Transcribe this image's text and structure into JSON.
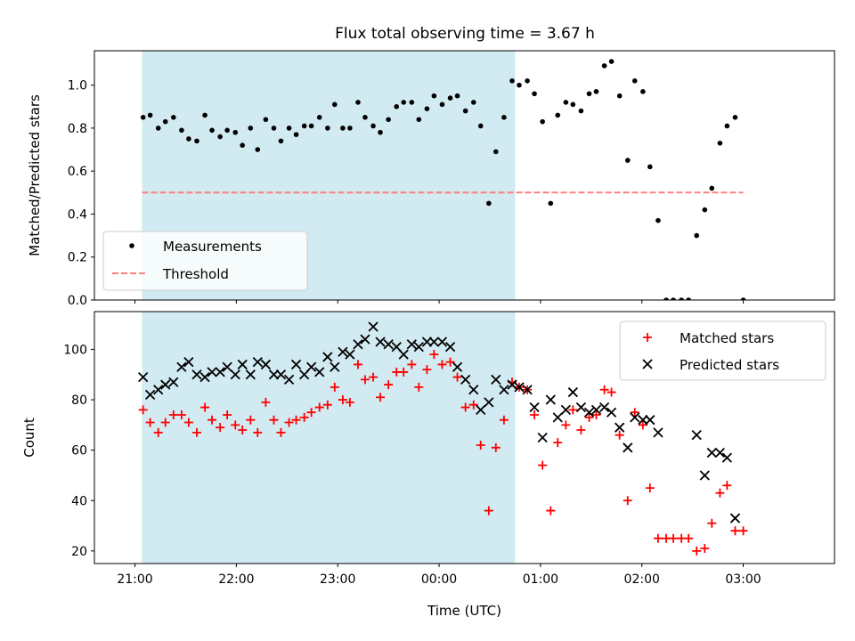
{
  "chart_data": [
    {
      "type": "scatter",
      "title": "Flux total observing time = 3.67 h",
      "xlabel": "",
      "ylabel": "Matched/Predicted stars",
      "ylim": [
        0,
        1.16
      ],
      "yticks": [
        0.0,
        0.2,
        0.4,
        0.6,
        0.8,
        1.0
      ],
      "ytick_labels": [
        "0.0",
        "0.2",
        "0.4",
        "0.6",
        "0.8",
        "1.0"
      ],
      "xlim_hours": [
        -3.4,
        3.9
      ],
      "shaded_span_hours": [
        -2.93,
        0.75
      ],
      "shade_color": "#add8e6",
      "legend_position": "lower-left",
      "series": [
        {
          "name": "Measurements",
          "marker": "dot",
          "color": "#000000",
          "points": [
            [
              -2.92,
              0.85
            ],
            [
              -2.85,
              0.86
            ],
            [
              -2.77,
              0.8
            ],
            [
              -2.7,
              0.83
            ],
            [
              -2.62,
              0.85
            ],
            [
              -2.54,
              0.79
            ],
            [
              -2.47,
              0.75
            ],
            [
              -2.39,
              0.74
            ],
            [
              -2.31,
              0.86
            ],
            [
              -2.24,
              0.79
            ],
            [
              -2.16,
              0.76
            ],
            [
              -2.09,
              0.79
            ],
            [
              -2.01,
              0.78
            ],
            [
              -1.94,
              0.72
            ],
            [
              -1.86,
              0.8
            ],
            [
              -1.79,
              0.7
            ],
            [
              -1.71,
              0.84
            ],
            [
              -1.63,
              0.8
            ],
            [
              -1.56,
              0.74
            ],
            [
              -1.48,
              0.8
            ],
            [
              -1.41,
              0.77
            ],
            [
              -1.33,
              0.81
            ],
            [
              -1.26,
              0.81
            ],
            [
              -1.18,
              0.85
            ],
            [
              -1.1,
              0.8
            ],
            [
              -1.03,
              0.91
            ],
            [
              -0.95,
              0.8
            ],
            [
              -0.88,
              0.8
            ],
            [
              -0.8,
              0.92
            ],
            [
              -0.73,
              0.85
            ],
            [
              -0.65,
              0.81
            ],
            [
              -0.58,
              0.78
            ],
            [
              -0.5,
              0.84
            ],
            [
              -0.42,
              0.9
            ],
            [
              -0.35,
              0.92
            ],
            [
              -0.27,
              0.92
            ],
            [
              -0.2,
              0.84
            ],
            [
              -0.12,
              0.89
            ],
            [
              -0.05,
              0.95
            ],
            [
              0.03,
              0.91
            ],
            [
              0.11,
              0.94
            ],
            [
              0.18,
              0.95
            ],
            [
              0.26,
              0.88
            ],
            [
              0.34,
              0.92
            ],
            [
              0.41,
              0.81
            ],
            [
              0.49,
              0.45
            ],
            [
              0.56,
              0.69
            ],
            [
              0.64,
              0.85
            ],
            [
              0.72,
              1.02
            ],
            [
              0.79,
              1.0
            ],
            [
              0.87,
              1.02
            ],
            [
              0.94,
              0.96
            ],
            [
              1.02,
              0.83
            ],
            [
              1.1,
              0.45
            ],
            [
              1.17,
              0.86
            ],
            [
              1.25,
              0.92
            ],
            [
              1.32,
              0.91
            ],
            [
              1.4,
              0.88
            ],
            [
              1.48,
              0.96
            ],
            [
              1.55,
              0.97
            ],
            [
              1.63,
              1.09
            ],
            [
              1.7,
              1.11
            ],
            [
              1.78,
              0.95
            ],
            [
              1.86,
              0.65
            ],
            [
              1.93,
              1.02
            ],
            [
              2.01,
              0.97
            ],
            [
              2.08,
              0.62
            ],
            [
              2.16,
              0.37
            ],
            [
              2.24,
              0.0
            ],
            [
              2.31,
              0.0
            ],
            [
              2.39,
              0.0
            ],
            [
              2.46,
              0.0
            ],
            [
              2.54,
              0.3
            ],
            [
              2.62,
              0.42
            ],
            [
              2.69,
              0.52
            ],
            [
              2.77,
              0.73
            ],
            [
              2.84,
              0.81
            ],
            [
              2.92,
              0.85
            ],
            [
              3.0,
              0.0
            ]
          ]
        },
        {
          "name": "Threshold",
          "marker": "dashed-line",
          "color": "#ff7f7f",
          "y": 0.5,
          "x_range_hours": [
            -2.93,
            3.0
          ]
        }
      ]
    },
    {
      "type": "scatter",
      "title": "",
      "xlabel": "Time (UTC)",
      "ylabel": "Count",
      "ylim": [
        15,
        115
      ],
      "yticks": [
        20,
        40,
        60,
        80,
        100
      ],
      "ytick_labels": [
        "20",
        "40",
        "60",
        "80",
        "100"
      ],
      "xlim_hours": [
        -3.4,
        3.9
      ],
      "xticks_hours": [
        -3,
        -2,
        -1,
        0,
        1,
        2,
        3
      ],
      "xtick_labels": [
        "21:00",
        "22:00",
        "23:00",
        "00:00",
        "01:00",
        "02:00",
        "03:00"
      ],
      "shaded_span_hours": [
        -2.93,
        0.75
      ],
      "shade_color": "#add8e6",
      "legend_position": "upper-right",
      "series": [
        {
          "name": "Matched stars",
          "marker": "plus",
          "color": "#ff0000",
          "points": [
            [
              -2.92,
              76
            ],
            [
              -2.85,
              71
            ],
            [
              -2.77,
              67
            ],
            [
              -2.7,
              71
            ],
            [
              -2.62,
              74
            ],
            [
              -2.54,
              74
            ],
            [
              -2.47,
              71
            ],
            [
              -2.39,
              67
            ],
            [
              -2.31,
              77
            ],
            [
              -2.24,
              72
            ],
            [
              -2.16,
              69
            ],
            [
              -2.09,
              74
            ],
            [
              -2.01,
              70
            ],
            [
              -1.94,
              68
            ],
            [
              -1.86,
              72
            ],
            [
              -1.79,
              67
            ],
            [
              -1.71,
              79
            ],
            [
              -1.63,
              72
            ],
            [
              -1.56,
              67
            ],
            [
              -1.48,
              71
            ],
            [
              -1.41,
              72
            ],
            [
              -1.33,
              73
            ],
            [
              -1.26,
              75
            ],
            [
              -1.18,
              77
            ],
            [
              -1.1,
              78
            ],
            [
              -1.03,
              85
            ],
            [
              -0.95,
              80
            ],
            [
              -0.88,
              79
            ],
            [
              -0.8,
              94
            ],
            [
              -0.73,
              88
            ],
            [
              -0.65,
              89
            ],
            [
              -0.58,
              81
            ],
            [
              -0.5,
              86
            ],
            [
              -0.42,
              91
            ],
            [
              -0.35,
              91
            ],
            [
              -0.27,
              94
            ],
            [
              -0.2,
              85
            ],
            [
              -0.12,
              92
            ],
            [
              -0.05,
              98
            ],
            [
              0.03,
              94
            ],
            [
              0.11,
              95
            ],
            [
              0.18,
              89
            ],
            [
              0.26,
              77
            ],
            [
              0.34,
              78
            ],
            [
              0.41,
              62
            ],
            [
              0.49,
              36
            ],
            [
              0.56,
              61
            ],
            [
              0.64,
              72
            ],
            [
              0.72,
              87
            ],
            [
              0.79,
              85
            ],
            [
              0.87,
              84
            ],
            [
              0.94,
              74
            ],
            [
              1.02,
              54
            ],
            [
              1.1,
              36
            ],
            [
              1.17,
              63
            ],
            [
              1.25,
              70
            ],
            [
              1.32,
              76
            ],
            [
              1.4,
              68
            ],
            [
              1.48,
              73
            ],
            [
              1.55,
              74
            ],
            [
              1.63,
              84
            ],
            [
              1.7,
              83
            ],
            [
              1.78,
              66
            ],
            [
              1.86,
              40
            ],
            [
              1.93,
              75
            ],
            [
              2.01,
              70
            ],
            [
              2.08,
              45
            ],
            [
              2.16,
              25
            ],
            [
              2.24,
              25
            ],
            [
              2.31,
              25
            ],
            [
              2.39,
              25
            ],
            [
              2.46,
              25
            ],
            [
              2.54,
              20
            ],
            [
              2.62,
              21
            ],
            [
              2.69,
              31
            ],
            [
              2.77,
              43
            ],
            [
              2.84,
              46
            ],
            [
              2.92,
              28
            ],
            [
              3.0,
              28
            ]
          ]
        },
        {
          "name": "Predicted stars",
          "marker": "x",
          "color": "#000000",
          "points": [
            [
              -2.92,
              89
            ],
            [
              -2.85,
              82
            ],
            [
              -2.77,
              84
            ],
            [
              -2.7,
              86
            ],
            [
              -2.62,
              87
            ],
            [
              -2.54,
              93
            ],
            [
              -2.47,
              95
            ],
            [
              -2.39,
              90
            ],
            [
              -2.31,
              89
            ],
            [
              -2.24,
              91
            ],
            [
              -2.16,
              91
            ],
            [
              -2.09,
              93
            ],
            [
              -2.01,
              90
            ],
            [
              -1.94,
              94
            ],
            [
              -1.86,
              90
            ],
            [
              -1.79,
              95
            ],
            [
              -1.71,
              94
            ],
            [
              -1.63,
              90
            ],
            [
              -1.56,
              90
            ],
            [
              -1.48,
              88
            ],
            [
              -1.41,
              94
            ],
            [
              -1.33,
              90
            ],
            [
              -1.26,
              93
            ],
            [
              -1.18,
              91
            ],
            [
              -1.1,
              97
            ],
            [
              -1.03,
              93
            ],
            [
              -0.95,
              99
            ],
            [
              -0.88,
              98
            ],
            [
              -0.8,
              102
            ],
            [
              -0.73,
              104
            ],
            [
              -0.65,
              109
            ],
            [
              -0.58,
              103
            ],
            [
              -0.5,
              102
            ],
            [
              -0.42,
              101
            ],
            [
              -0.35,
              98
            ],
            [
              -0.27,
              102
            ],
            [
              -0.2,
              101
            ],
            [
              -0.12,
              103
            ],
            [
              -0.05,
              103
            ],
            [
              0.03,
              103
            ],
            [
              0.11,
              101
            ],
            [
              0.18,
              93
            ],
            [
              0.26,
              88
            ],
            [
              0.34,
              84
            ],
            [
              0.41,
              76
            ],
            [
              0.49,
              79
            ],
            [
              0.56,
              88
            ],
            [
              0.64,
              84
            ],
            [
              0.72,
              86
            ],
            [
              0.79,
              85
            ],
            [
              0.87,
              84
            ],
            [
              0.94,
              77
            ],
            [
              1.02,
              65
            ],
            [
              1.1,
              80
            ],
            [
              1.17,
              73
            ],
            [
              1.25,
              76
            ],
            [
              1.32,
              83
            ],
            [
              1.4,
              77
            ],
            [
              1.48,
              75
            ],
            [
              1.55,
              76
            ],
            [
              1.63,
              77
            ],
            [
              1.7,
              75
            ],
            [
              1.78,
              69
            ],
            [
              1.86,
              61
            ],
            [
              1.93,
              73
            ],
            [
              2.01,
              72
            ],
            [
              2.08,
              72
            ],
            [
              2.16,
              67
            ],
            [
              2.77,
              59
            ],
            [
              2.84,
              57
            ],
            [
              2.54,
              66
            ],
            [
              2.62,
              50
            ],
            [
              2.69,
              59
            ],
            [
              2.92,
              33
            ]
          ]
        }
      ]
    }
  ]
}
